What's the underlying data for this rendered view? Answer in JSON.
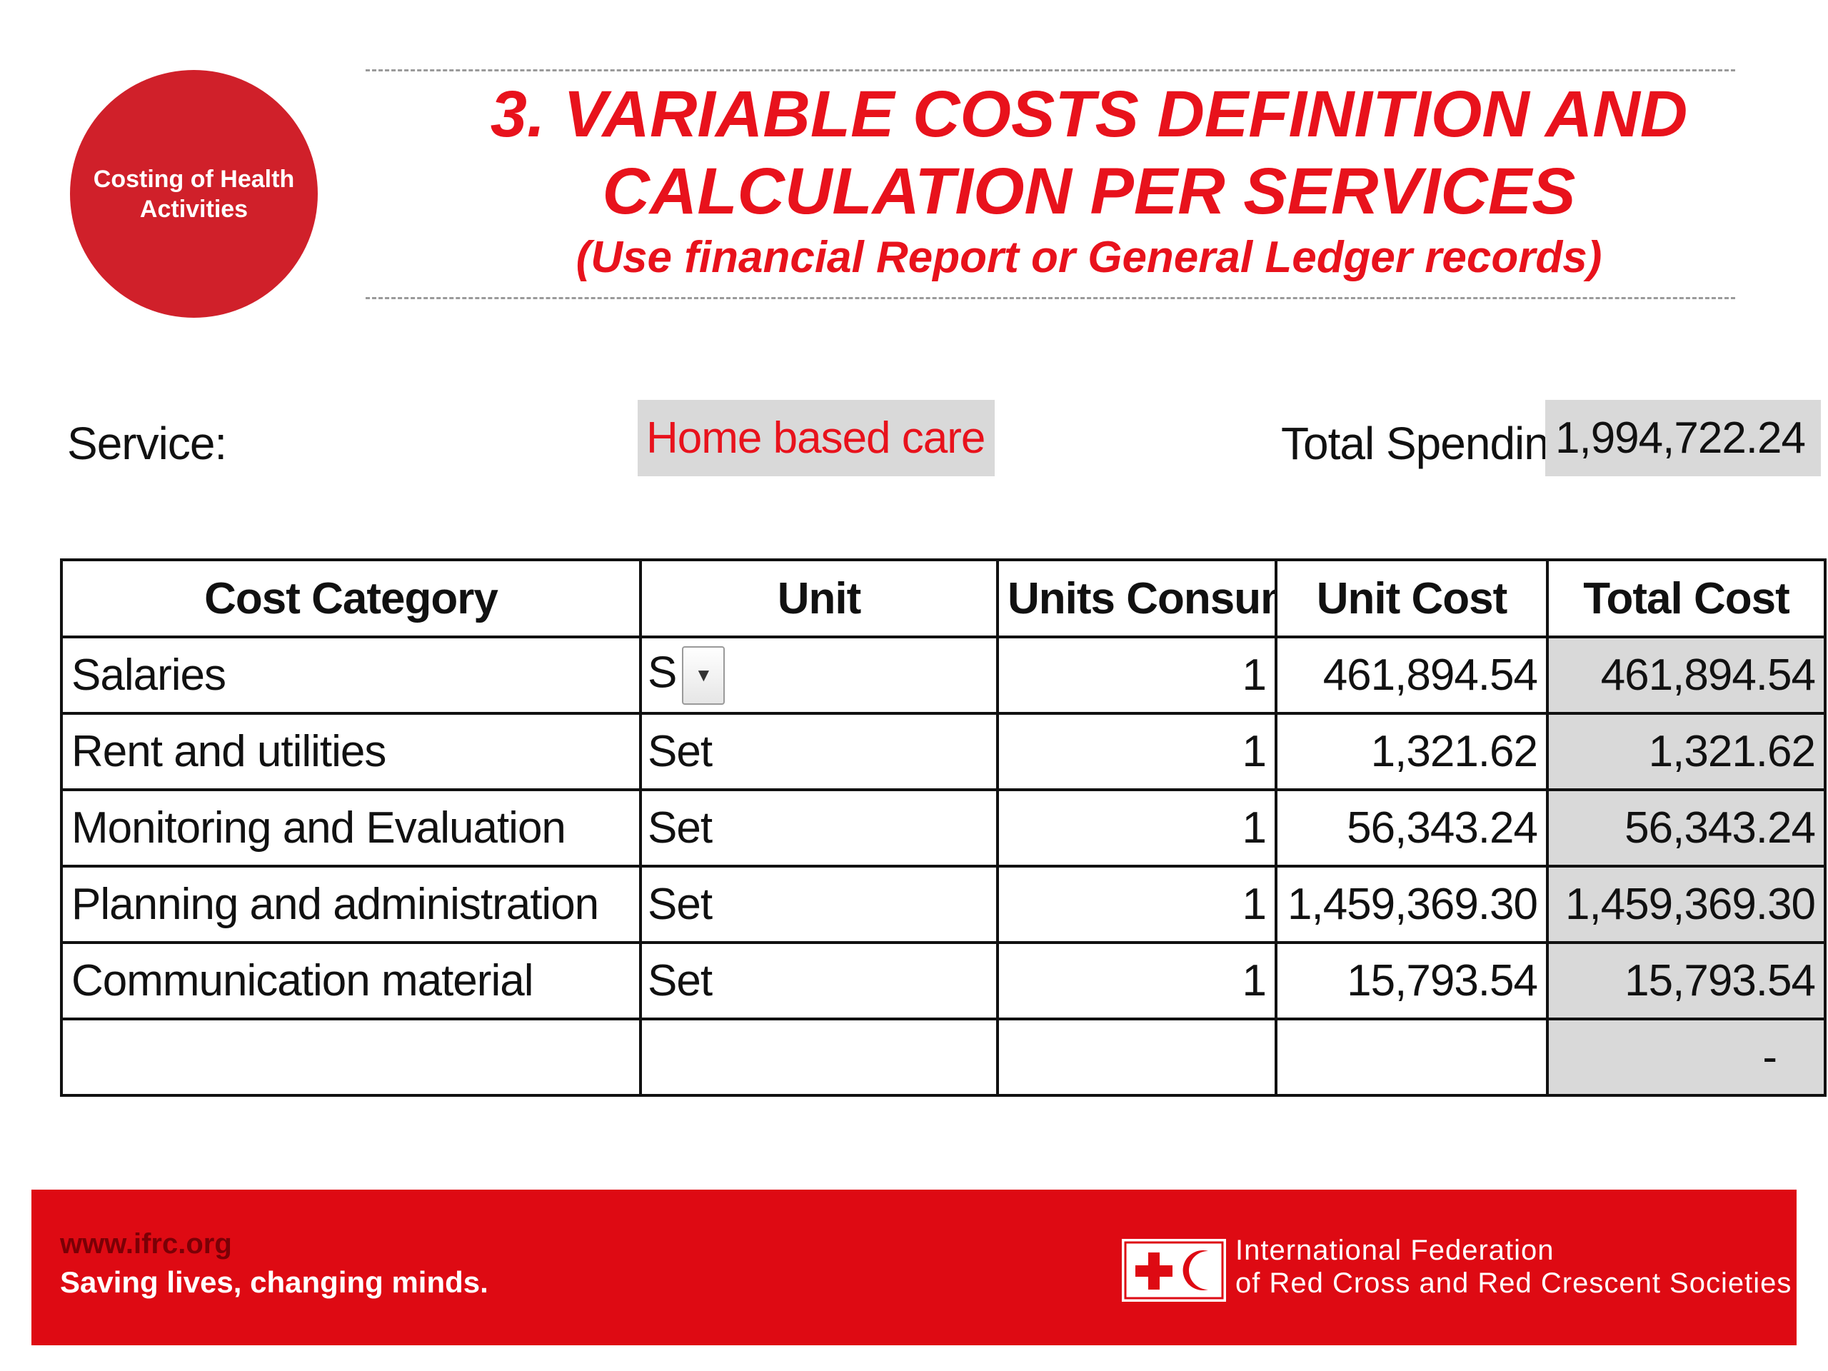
{
  "badge": {
    "text": "Costing of Health Activities"
  },
  "header": {
    "title": "3. VARIABLE COSTS DEFINITION AND\nCALCULATION PER SERVICES",
    "subtitle": "(Use financial Report or General Ledger records)"
  },
  "service": {
    "label": "Service:",
    "value": "Home based care",
    "value_color": "#e8121c"
  },
  "total_spending": {
    "label": "Total Spending:",
    "value": "1,994,722.24"
  },
  "table": {
    "headers": [
      "Cost Category",
      "Unit",
      "Units Consumed",
      "Unit Cost",
      "Total Cost"
    ],
    "rows": [
      {
        "category": "Salaries",
        "unit": "S",
        "units_consumed": "1",
        "unit_cost": "461,894.54",
        "total_cost": "461,894.54"
      },
      {
        "category": "Rent and utilities",
        "unit": "Set",
        "units_consumed": "1",
        "unit_cost": "1,321.62",
        "total_cost": "1,321.62"
      },
      {
        "category": "Monitoring and Evaluation",
        "unit": "Set",
        "units_consumed": "1",
        "unit_cost": "56,343.24",
        "total_cost": "56,343.24"
      },
      {
        "category": "Planning and administration",
        "unit": "Set",
        "units_consumed": "1",
        "unit_cost": "1,459,369.30",
        "total_cost": "1,459,369.30"
      },
      {
        "category": "Communication material",
        "unit": "Set",
        "units_consumed": "1",
        "unit_cost": "15,793.54",
        "total_cost": "15,793.54"
      },
      {
        "category": "",
        "unit": "",
        "units_consumed": "",
        "unit_cost": "",
        "total_cost": "-"
      }
    ],
    "dropdown_icon": "chevron-down-icon"
  },
  "footer": {
    "url": "www.ifrc.org",
    "tagline": "Saving lives, changing minds.",
    "org_line1": "International Federation",
    "org_line2": "of Red Cross and Red Crescent Societies",
    "logo_icon": "red-cross-crescent-icon",
    "brand_color": "#de0a13"
  }
}
